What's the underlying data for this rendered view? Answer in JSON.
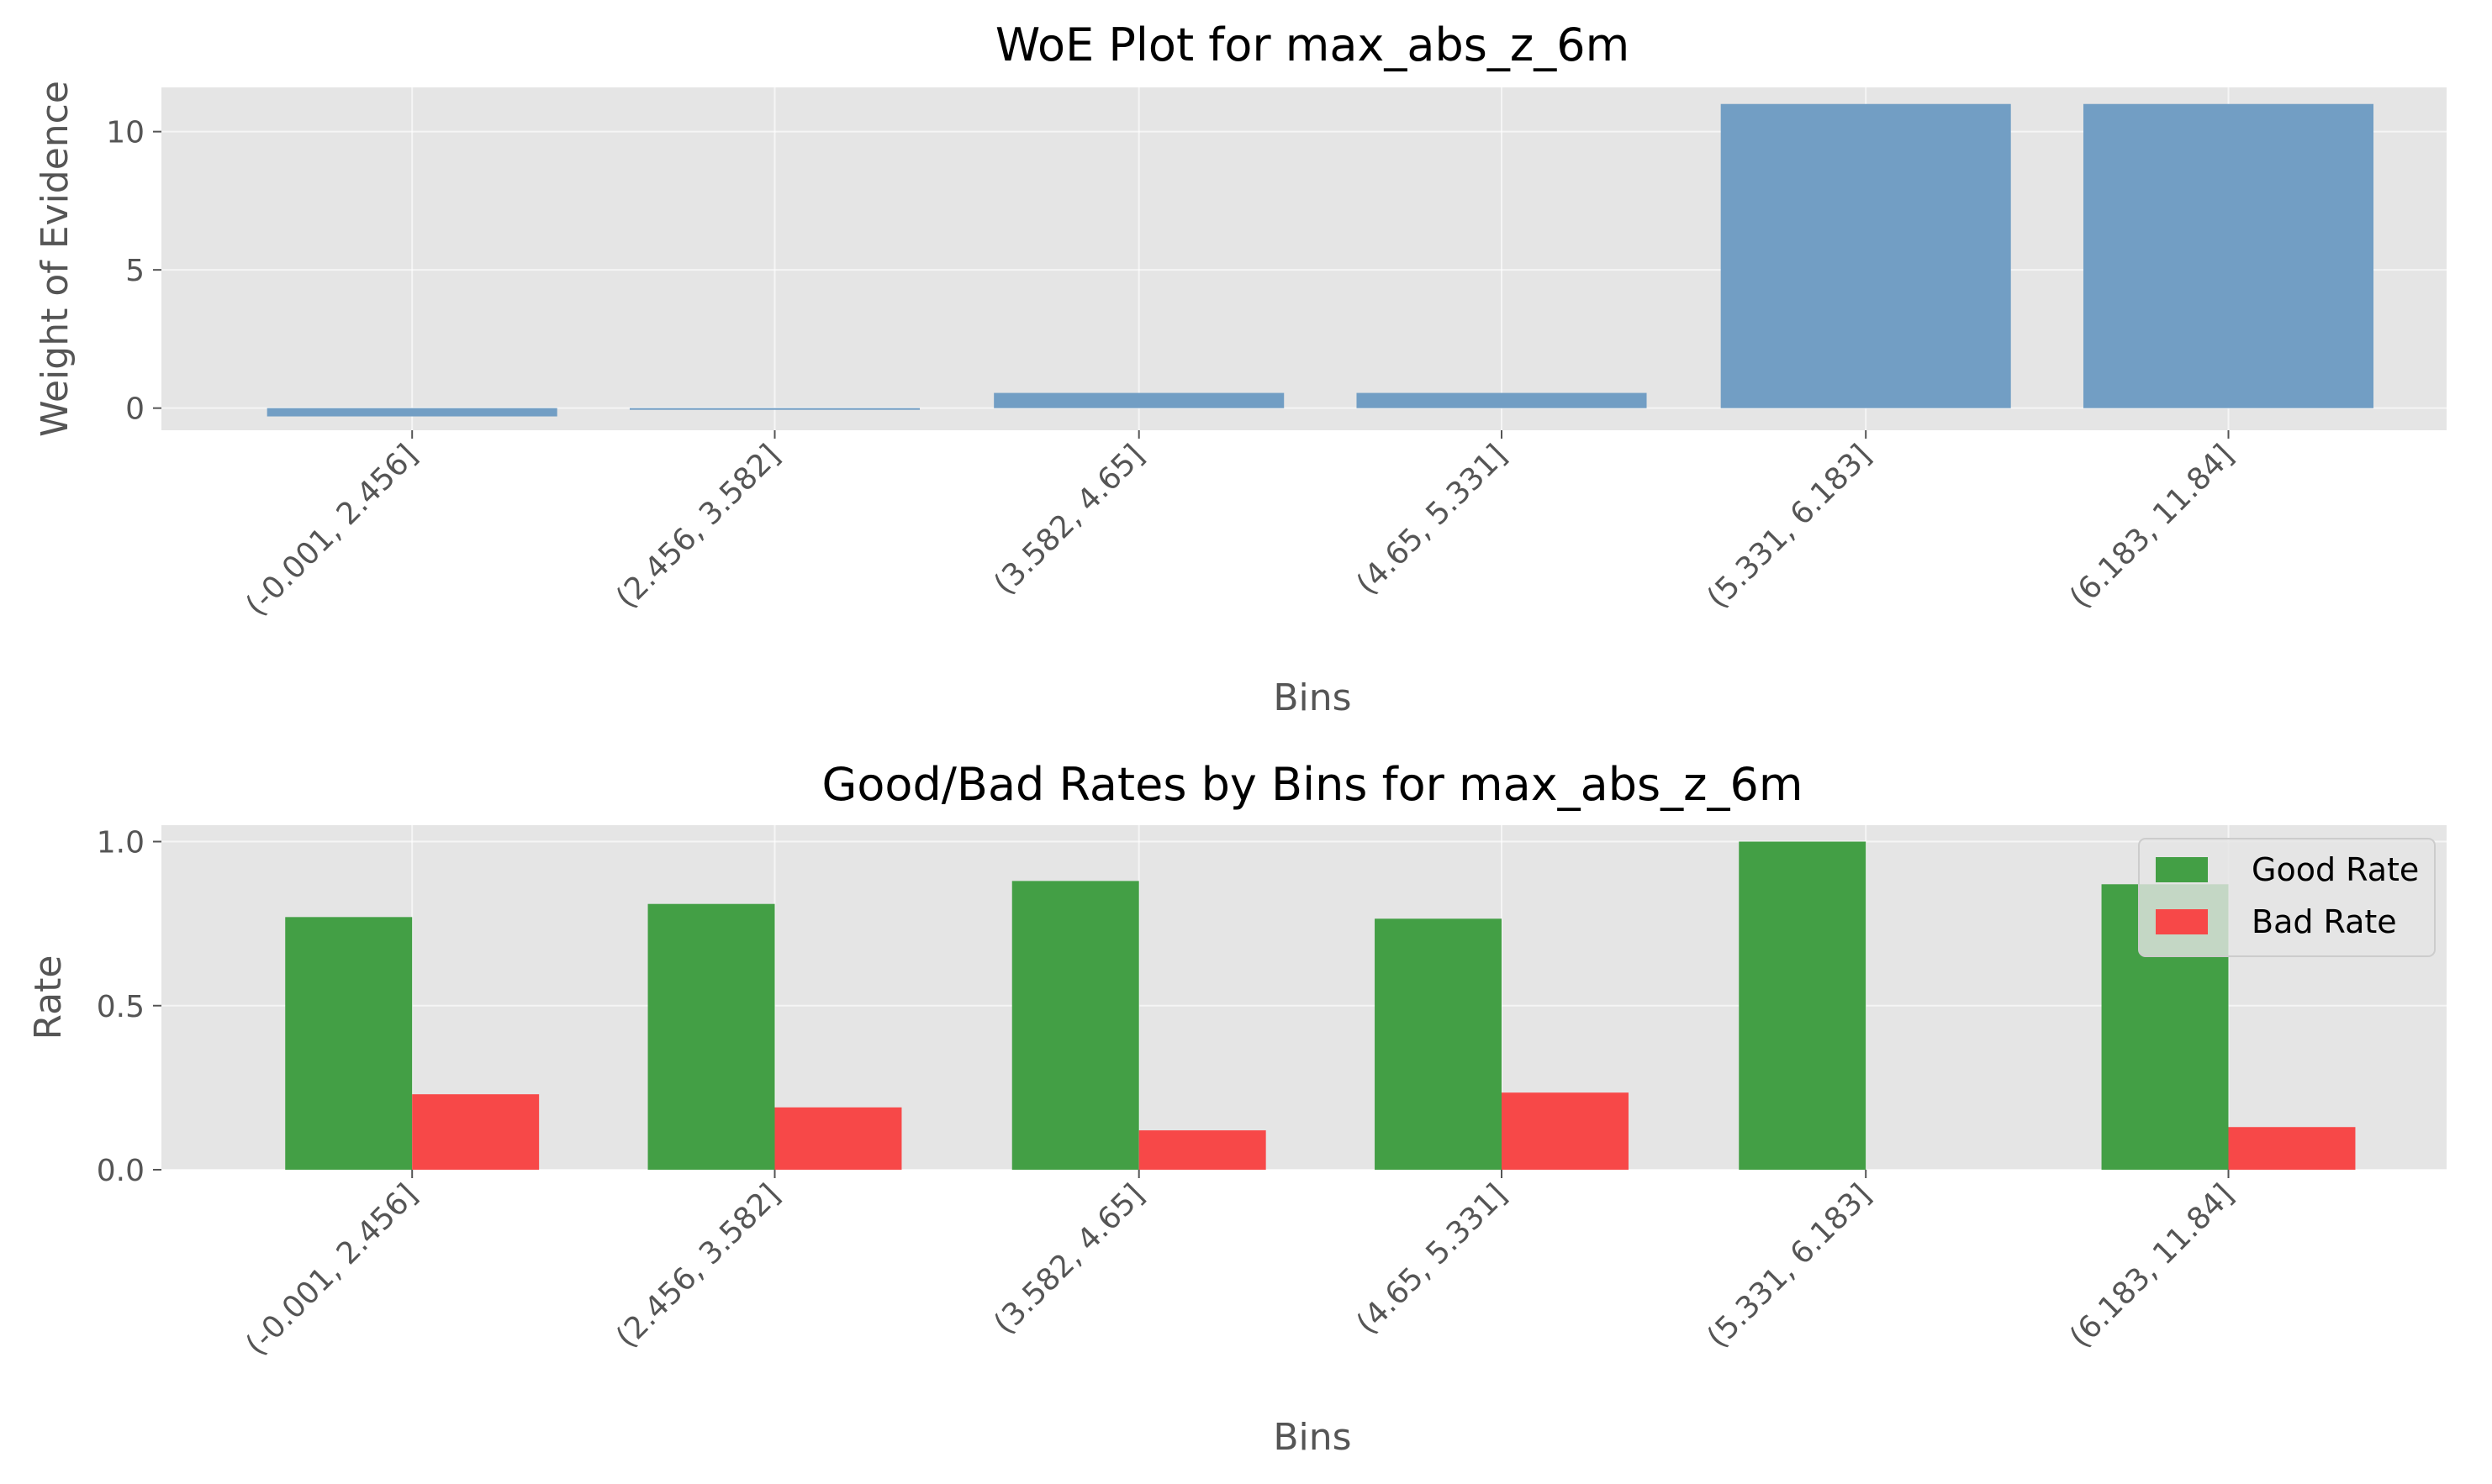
{
  "chart_data": [
    {
      "type": "bar",
      "title": "WoE Plot for max_abs_z_6m",
      "xlabel": "Bins",
      "ylabel": "Weight of Evidence",
      "categories": [
        "(-0.001, 2.456]",
        "(2.456, 3.582]",
        "(3.582, 4.65]",
        "(4.65, 5.331]",
        "(5.331, 6.183]",
        "(6.183, 11.84]"
      ],
      "values": [
        -0.3,
        -0.05,
        0.55,
        0.55,
        11.0,
        11.0
      ],
      "ylim": [
        -0.8,
        11.6
      ],
      "yticks": [
        0,
        5,
        10
      ],
      "color": "#729ec4",
      "grid": true
    },
    {
      "type": "bar",
      "title": "Good/Bad Rates by Bins for max_abs_z_6m",
      "xlabel": "Bins",
      "ylabel": "Rate",
      "categories": [
        "(-0.001, 2.456]",
        "(2.456, 3.582]",
        "(3.582, 4.65]",
        "(4.65, 5.331]",
        "(5.331, 6.183]",
        "(6.183, 11.84]"
      ],
      "series": [
        {
          "name": "Good Rate",
          "values": [
            0.77,
            0.81,
            0.88,
            0.765,
            1.0,
            0.87
          ],
          "color": "#439f45"
        },
        {
          "name": "Bad Rate",
          "values": [
            0.23,
            0.19,
            0.12,
            0.235,
            0.0,
            0.13
          ],
          "color": "#f74848"
        }
      ],
      "ylim": [
        0,
        1.05
      ],
      "yticks": [
        0.0,
        0.5,
        1.0
      ],
      "legend": "top-right",
      "grid": true
    }
  ]
}
